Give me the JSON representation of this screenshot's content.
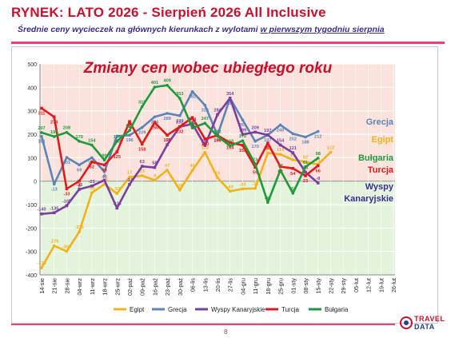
{
  "header": {
    "title": "RYNEK: LATO 2026 - Sierpień 2026 All Inclusive",
    "subtitle_main": "Średnie ceny wycieczek na głównych kierunkach  z wylotami ",
    "subtitle_underlined": "w pierwszym tygodniu sierpnia"
  },
  "footer": {
    "page_number": "8"
  },
  "logo": {
    "line1": "TRAVEL",
    "line2": "DATA"
  },
  "colors": {
    "title": "#c8102e",
    "subtitle": "#3a2f8f",
    "rule": "#e8407a",
    "band_positive": "#fbe2dc",
    "band_negative": "#e4f3dc"
  },
  "chart_data": {
    "type": "line",
    "title": "Zmiany cen wobec ubiegłego roku",
    "ylim": [
      -400,
      500
    ],
    "yticks": [
      -400,
      -300,
      -200,
      -100,
      0,
      100,
      200,
      300,
      400,
      500
    ],
    "grid": true,
    "background_bands": [
      {
        "from": 0,
        "to": 500,
        "color": "#fbe2dc"
      },
      {
        "from": -400,
        "to": 0,
        "color": "#e4f3dc"
      }
    ],
    "categories": [
      "14-sie",
      "21-sie",
      "28-sie",
      "04-wrz",
      "11-wrz",
      "18-wrz",
      "25-wrz",
      "02-paź",
      "09-paź",
      "16-paź",
      "23-paź",
      "30-paź",
      "06-lis",
      "13-lis",
      "20-lis",
      "27-lis",
      "04-gru",
      "11-gru",
      "18-gru",
      "25-gru",
      "01-sty",
      "08-sty",
      "15-sty",
      "22-sty",
      "29-sty",
      "05-lut",
      "12-lut",
      "19-lut",
      "26-lut"
    ],
    "legend_position": "bottom",
    "series": [
      {
        "name": "Egipt",
        "color": "#f2b21a",
        "label_value": [
          -370,
          -276,
          -300,
          -216,
          -50,
          -13,
          -53,
          17,
          23,
          4,
          47,
          -38,
          46,
          123,
          15,
          -43,
          -33,
          -31,
          120,
          114,
          91,
          82,
          71,
          123
        ],
        "values": [
          -370,
          -276,
          -300,
          -216,
          -50,
          -13,
          -53,
          17,
          23,
          4,
          47,
          -38,
          46,
          123,
          15,
          -43,
          -33,
          -31,
          120,
          114,
          91,
          82,
          71,
          123,
          null,
          null,
          null,
          null,
          null
        ]
      },
      {
        "name": "Grecja",
        "color": "#5b84b8",
        "values": [
          191,
          -13,
          101,
          69,
          100,
          40,
          192,
          196,
          229,
          274,
          289,
          279,
          382,
          324,
          196,
          354,
          261,
          170,
          197,
          240,
          202,
          188,
          212,
          null,
          null,
          null,
          null,
          null,
          null
        ]
      },
      {
        "name": "Wyspy Kanaryjskie",
        "color": "#7a3fa0",
        "values": [
          -140,
          -135,
          -105,
          -35,
          -21,
          4,
          -115,
          -14,
          63,
          58,
          155,
          232,
          244,
          152,
          284,
          354,
          199,
          209,
          197,
          154,
          121,
          38,
          -8,
          null,
          null,
          null,
          null,
          null,
          null
        ]
      },
      {
        "name": "Turcja",
        "color": "#e41a1a",
        "values": [
          311,
          274,
          -33,
          0,
          82,
          69,
          125,
          254,
          158,
          250,
          196,
          232,
          271,
          180,
          195,
          164,
          153,
          59,
          162,
          62,
          54,
          23,
          66,
          null,
          null,
          null,
          null,
          null,
          null
        ]
      },
      {
        "name": "Bułgaria",
        "color": "#1f9a3a",
        "values": [
          207,
          190,
          208,
          170,
          154,
          90,
          170,
          216,
          318,
          401,
          409,
          353,
          227,
          247,
          192,
          150,
          172,
          73,
          -91,
          47,
          -52,
          61,
          98,
          null,
          null,
          null,
          null,
          null,
          null
        ]
      }
    ],
    "right_labels": [
      {
        "text": "Grecja",
        "color": "#5b84b8"
      },
      {
        "text": "Egipt",
        "color": "#f2b21a"
      },
      {
        "text": "Bułgaria",
        "color": "#1f9a3a"
      },
      {
        "text": "Turcja",
        "color": "#e41a1a"
      },
      {
        "text": "Wyspy",
        "color": "#3a2f8f"
      },
      {
        "text": "Kanaryjskie",
        "color": "#3a2f8f"
      }
    ]
  }
}
